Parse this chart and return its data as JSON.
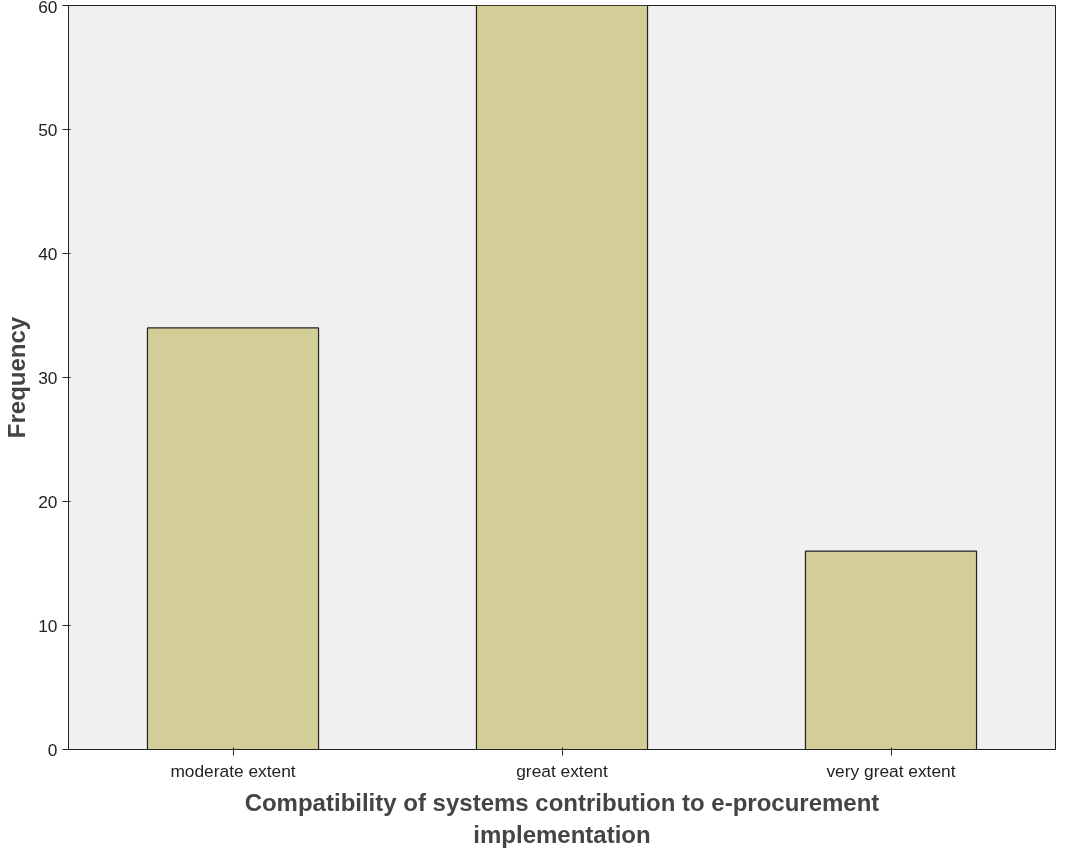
{
  "chart_data": {
    "type": "bar",
    "xlabel": "Compatibility of systems contribution to e-procurement\nimplementation",
    "ylabel": "Frequency",
    "categories": [
      "moderate extent",
      "great extent",
      "very great extent"
    ],
    "values": [
      34,
      60,
      16
    ],
    "color": "#d3ce97",
    "ylim": [
      0,
      60
    ],
    "yticks": [
      0,
      10,
      20,
      30,
      40,
      50,
      60
    ],
    "grid": false
  }
}
